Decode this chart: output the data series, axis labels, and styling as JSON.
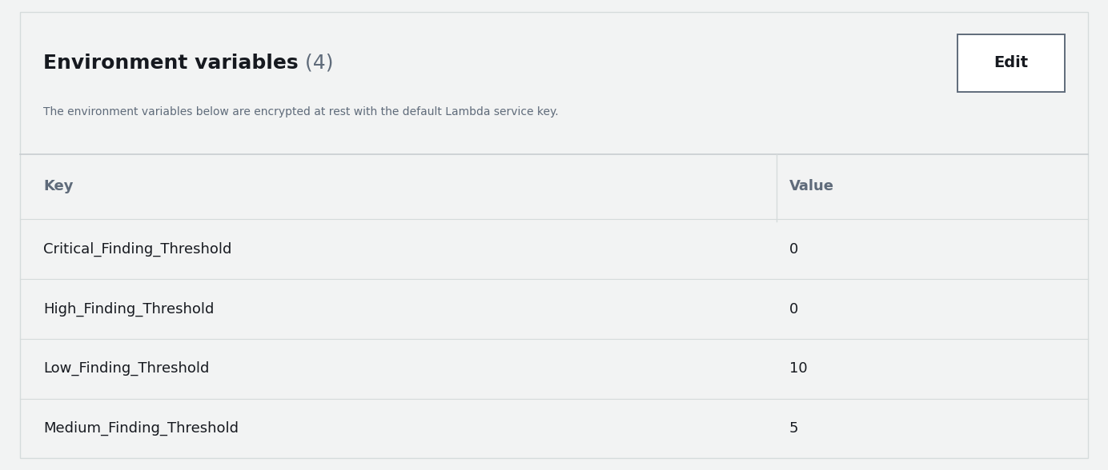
{
  "title_main": "Environment variables",
  "title_count": " (4)",
  "subtitle": "The environment variables below are encrypted at rest with the default Lambda service key.",
  "edit_button_text": "Edit",
  "col_key_header": "Key",
  "col_value_header": "Value",
  "rows": [
    {
      "key": "Critical_Finding_Threshold",
      "value": "0"
    },
    {
      "key": "High_Finding_Threshold",
      "value": "0"
    },
    {
      "key": "Low_Finding_Threshold",
      "value": "10"
    },
    {
      "key": "Medium_Finding_Threshold",
      "value": "5"
    }
  ],
  "bg_color": "#f2f3f3",
  "card_color": "#ffffff",
  "title_color": "#16191f",
  "count_color": "#5f6b7a",
  "subtitle_color": "#5f6b7a",
  "header_color": "#5f6b7a",
  "row_text_color": "#16191f",
  "divider_color": "#d5dbdb",
  "button_border_color": "#5f6b7a",
  "button_text_color": "#16191f",
  "divider_heavy_color": "#c8cdd1",
  "fig_width": 13.84,
  "fig_height": 5.88,
  "dpi": 100
}
